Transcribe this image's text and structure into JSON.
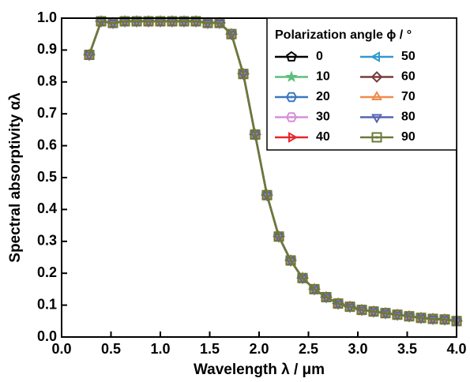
{
  "chart_data": {
    "type": "line",
    "x_label": "Wavelength λ / μm",
    "y_label": "Spectral absorptivity αλ",
    "legend_title": "Polarization angle  ϕ / °",
    "legend_position": "upper right",
    "xlim": [
      0,
      4
    ],
    "ylim": [
      0,
      1
    ],
    "xticks": [
      {
        "value": 0,
        "label": "0.0"
      },
      0.5,
      {
        "value": 1,
        "label": "1.0"
      },
      1.5,
      {
        "value": 2,
        "label": "2.0"
      },
      2.5,
      {
        "value": 3,
        "label": "3.0"
      },
      3.5,
      {
        "value": 4,
        "label": "4.0"
      }
    ],
    "yticks": [
      {
        "value": 0,
        "label": "0.0"
      },
      0.1,
      0.2,
      0.3,
      0.4,
      0.5,
      0.6,
      0.7,
      0.8,
      0.9,
      {
        "value": 1,
        "label": "1.0"
      }
    ],
    "x": [
      0.28,
      0.4,
      0.52,
      0.64,
      0.76,
      0.88,
      1.0,
      1.12,
      1.24,
      1.36,
      1.48,
      1.6,
      1.72,
      1.84,
      1.96,
      2.08,
      2.2,
      2.32,
      2.44,
      2.56,
      2.68,
      2.8,
      2.92,
      3.04,
      3.16,
      3.28,
      3.4,
      3.52,
      3.64,
      3.76,
      3.88,
      4.0
    ],
    "series": [
      {
        "name": "0",
        "color": "#000000",
        "marker": "pentagon",
        "values": [
          0.885,
          0.99,
          0.985,
          0.99,
          0.99,
          0.99,
          0.99,
          0.99,
          0.99,
          0.99,
          0.985,
          0.985,
          0.95,
          0.825,
          0.635,
          0.445,
          0.315,
          0.24,
          0.185,
          0.15,
          0.125,
          0.105,
          0.095,
          0.085,
          0.08,
          0.075,
          0.07,
          0.065,
          0.06,
          0.057,
          0.055,
          0.05
        ]
      },
      {
        "name": "10",
        "color": "#5cbf7a",
        "marker": "star",
        "values": [
          0.885,
          0.99,
          0.985,
          0.99,
          0.99,
          0.99,
          0.99,
          0.99,
          0.99,
          0.99,
          0.985,
          0.985,
          0.95,
          0.825,
          0.635,
          0.445,
          0.315,
          0.24,
          0.185,
          0.15,
          0.125,
          0.105,
          0.095,
          0.085,
          0.08,
          0.075,
          0.07,
          0.065,
          0.06,
          0.057,
          0.055,
          0.05
        ]
      },
      {
        "name": "20",
        "color": "#3a78c0",
        "marker": "hexdot",
        "values": [
          0.885,
          0.99,
          0.985,
          0.99,
          0.99,
          0.99,
          0.99,
          0.99,
          0.99,
          0.99,
          0.985,
          0.985,
          0.95,
          0.825,
          0.635,
          0.445,
          0.315,
          0.24,
          0.185,
          0.15,
          0.125,
          0.105,
          0.095,
          0.085,
          0.08,
          0.075,
          0.07,
          0.065,
          0.06,
          0.057,
          0.055,
          0.05
        ]
      },
      {
        "name": "30",
        "color": "#d690d8",
        "marker": "hexdot",
        "values": [
          0.885,
          0.99,
          0.985,
          0.99,
          0.99,
          0.99,
          0.99,
          0.99,
          0.99,
          0.99,
          0.985,
          0.985,
          0.95,
          0.825,
          0.635,
          0.445,
          0.315,
          0.24,
          0.185,
          0.15,
          0.125,
          0.105,
          0.095,
          0.085,
          0.08,
          0.075,
          0.07,
          0.065,
          0.06,
          0.057,
          0.055,
          0.05
        ]
      },
      {
        "name": "40",
        "color": "#e8262a",
        "marker": "triangle-right",
        "values": [
          0.885,
          0.99,
          0.985,
          0.99,
          0.99,
          0.99,
          0.99,
          0.99,
          0.99,
          0.99,
          0.985,
          0.985,
          0.95,
          0.825,
          0.635,
          0.445,
          0.315,
          0.24,
          0.185,
          0.15,
          0.125,
          0.105,
          0.095,
          0.085,
          0.08,
          0.075,
          0.07,
          0.065,
          0.06,
          0.057,
          0.055,
          0.05
        ]
      },
      {
        "name": "50",
        "color": "#3399cc",
        "marker": "triangle-left",
        "values": [
          0.885,
          0.99,
          0.985,
          0.99,
          0.99,
          0.99,
          0.99,
          0.99,
          0.99,
          0.99,
          0.985,
          0.985,
          0.95,
          0.825,
          0.635,
          0.445,
          0.315,
          0.24,
          0.185,
          0.15,
          0.125,
          0.105,
          0.095,
          0.085,
          0.08,
          0.075,
          0.07,
          0.065,
          0.06,
          0.057,
          0.055,
          0.05
        ]
      },
      {
        "name": "60",
        "color": "#7a3b3b",
        "marker": "diamond",
        "values": [
          0.885,
          0.99,
          0.985,
          0.99,
          0.99,
          0.99,
          0.99,
          0.99,
          0.99,
          0.99,
          0.985,
          0.985,
          0.95,
          0.825,
          0.635,
          0.445,
          0.315,
          0.24,
          0.185,
          0.15,
          0.125,
          0.105,
          0.095,
          0.085,
          0.08,
          0.075,
          0.07,
          0.065,
          0.06,
          0.057,
          0.055,
          0.05
        ]
      },
      {
        "name": "70",
        "color": "#f08a4b",
        "marker": "triangle-up",
        "values": [
          0.885,
          0.99,
          0.985,
          0.99,
          0.99,
          0.99,
          0.99,
          0.99,
          0.99,
          0.99,
          0.985,
          0.985,
          0.95,
          0.825,
          0.635,
          0.445,
          0.315,
          0.24,
          0.185,
          0.15,
          0.125,
          0.105,
          0.095,
          0.085,
          0.08,
          0.075,
          0.07,
          0.065,
          0.06,
          0.057,
          0.055,
          0.05
        ]
      },
      {
        "name": "80",
        "color": "#5565b0",
        "marker": "triangle-down",
        "values": [
          0.885,
          0.99,
          0.985,
          0.99,
          0.99,
          0.99,
          0.99,
          0.99,
          0.99,
          0.99,
          0.985,
          0.985,
          0.95,
          0.825,
          0.635,
          0.445,
          0.315,
          0.24,
          0.185,
          0.15,
          0.125,
          0.105,
          0.095,
          0.085,
          0.08,
          0.075,
          0.07,
          0.065,
          0.06,
          0.057,
          0.055,
          0.05
        ]
      },
      {
        "name": "90",
        "color": "#6b7a38",
        "marker": "squaredot",
        "values": [
          0.885,
          0.99,
          0.985,
          0.99,
          0.99,
          0.99,
          0.99,
          0.99,
          0.99,
          0.99,
          0.985,
          0.985,
          0.95,
          0.825,
          0.635,
          0.445,
          0.315,
          0.24,
          0.185,
          0.15,
          0.125,
          0.105,
          0.095,
          0.085,
          0.08,
          0.075,
          0.07,
          0.065,
          0.06,
          0.057,
          0.055,
          0.05
        ]
      }
    ]
  }
}
